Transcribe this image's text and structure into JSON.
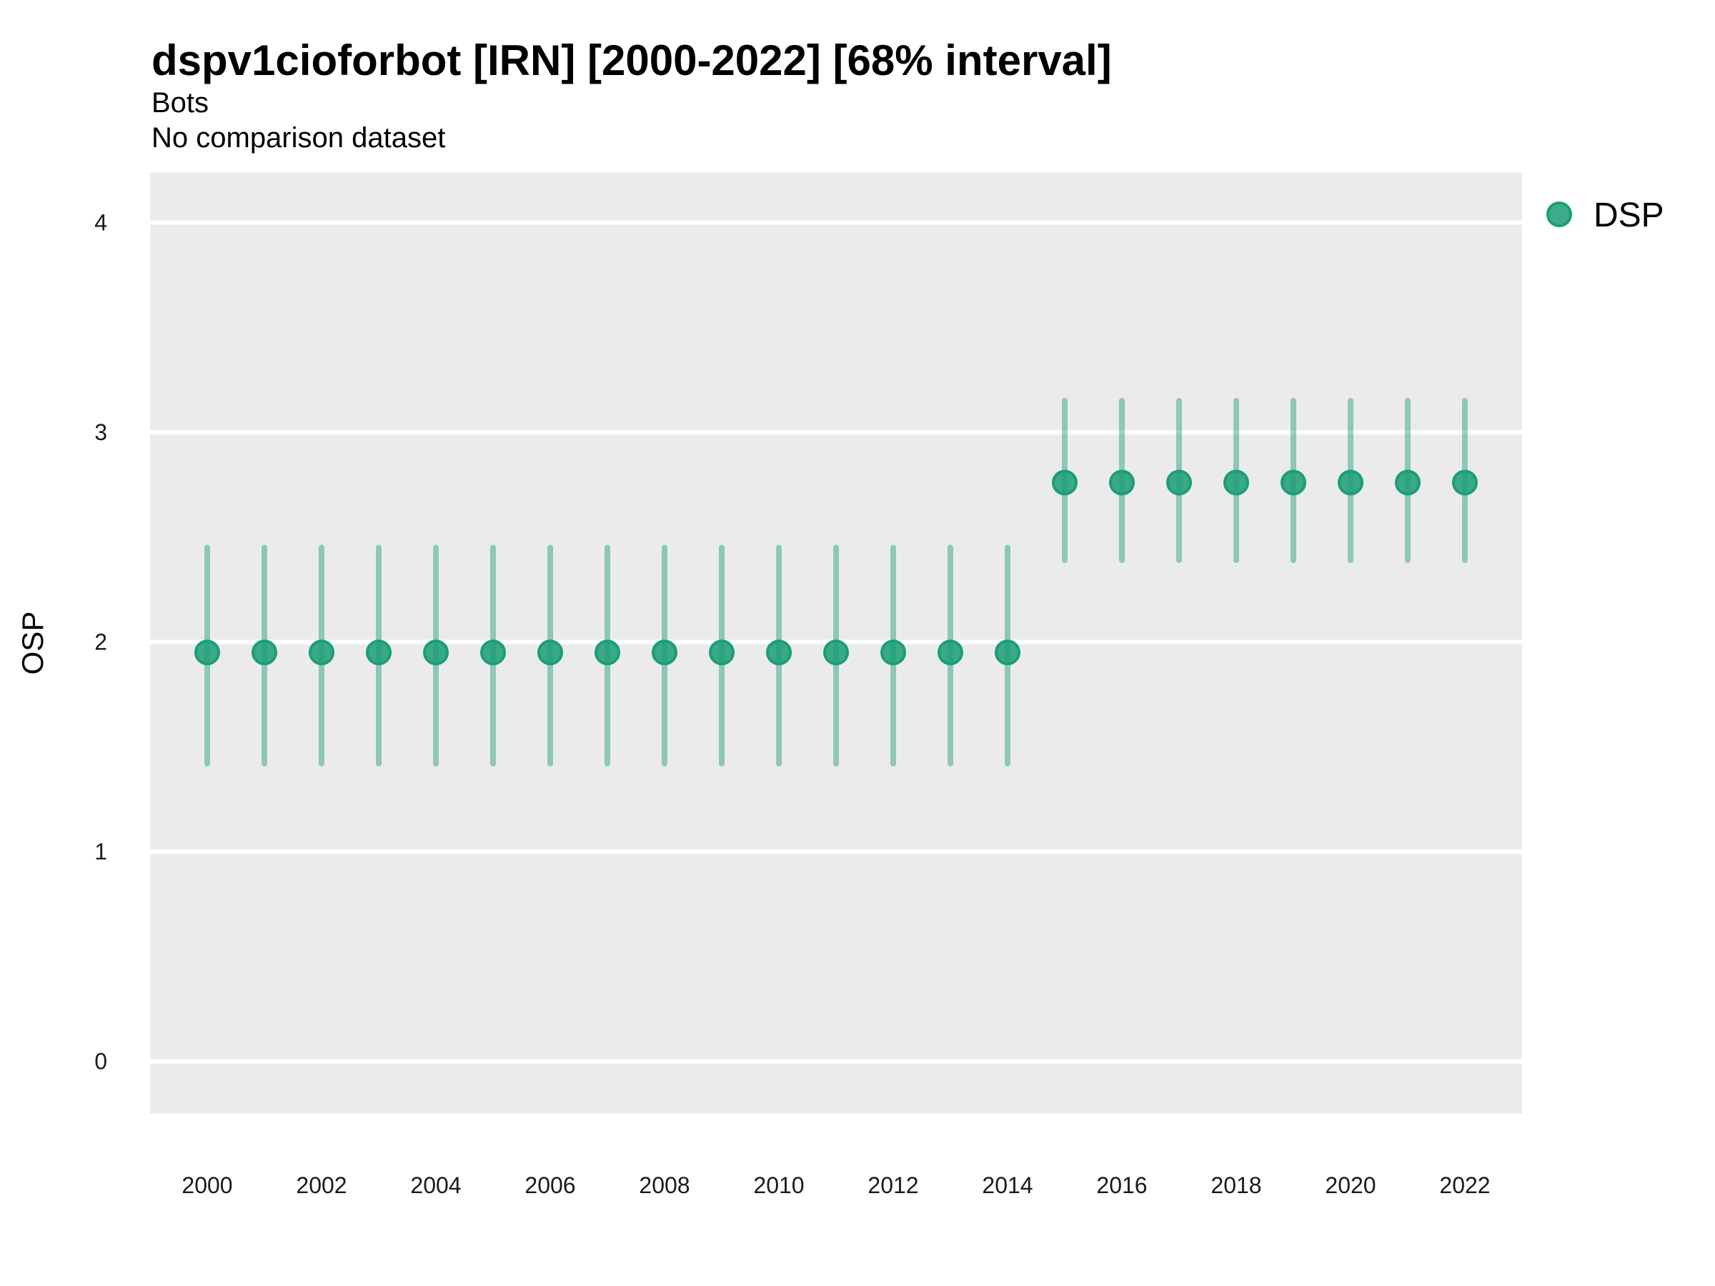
{
  "chart_data": {
    "type": "scatter",
    "style": "pointrange",
    "title": "dspv1cioforbot [IRN] [2000-2022] [68% interval]",
    "subtitle": "Bots",
    "note": "No comparison dataset",
    "xlabel": "",
    "ylabel": "OSP",
    "interval_label": "68% interval",
    "x": [
      2000,
      2001,
      2002,
      2003,
      2004,
      2005,
      2006,
      2007,
      2008,
      2009,
      2010,
      2011,
      2012,
      2013,
      2014,
      2015,
      2016,
      2017,
      2018,
      2019,
      2020,
      2021,
      2022
    ],
    "series": [
      {
        "name": "DSP",
        "values": [
          1.95,
          1.95,
          1.95,
          1.95,
          1.95,
          1.95,
          1.95,
          1.95,
          1.95,
          1.95,
          1.95,
          1.95,
          1.95,
          1.95,
          1.95,
          2.76,
          2.76,
          2.76,
          2.76,
          2.76,
          2.76,
          2.76,
          2.76
        ],
        "lower": [
          1.42,
          1.42,
          1.42,
          1.42,
          1.42,
          1.42,
          1.42,
          1.42,
          1.42,
          1.42,
          1.42,
          1.42,
          1.42,
          1.42,
          1.42,
          2.39,
          2.39,
          2.39,
          2.39,
          2.39,
          2.39,
          2.39,
          2.39
        ],
        "upper": [
          2.45,
          2.45,
          2.45,
          2.45,
          2.45,
          2.45,
          2.45,
          2.45,
          2.45,
          2.45,
          2.45,
          2.45,
          2.45,
          2.45,
          2.45,
          3.15,
          3.15,
          3.15,
          3.15,
          3.15,
          3.15,
          3.15,
          3.15
        ]
      }
    ],
    "xticks": [
      2000,
      2002,
      2004,
      2006,
      2008,
      2010,
      2012,
      2014,
      2016,
      2018,
      2020,
      2022
    ],
    "yticks": [
      0,
      1,
      2,
      3,
      4
    ],
    "xlim": [
      1999,
      2023
    ],
    "ylim": [
      -0.25,
      4.24
    ],
    "grid": "horizontal-major-only",
    "legend_position": "right-top",
    "colors": {
      "series": "#1B9E77",
      "point_fill_opacity": 0.85,
      "interval_opacity": 0.45,
      "panel_background": "#EBEBEB",
      "gridline": "#FFFFFF",
      "title_text": "#000000",
      "axis_text": "#1a1a1a"
    }
  }
}
